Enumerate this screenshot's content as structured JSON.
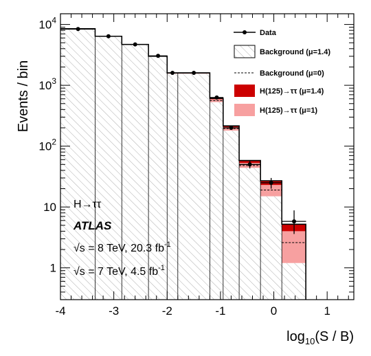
{
  "chart_data": {
    "type": "histogram",
    "ylog": true,
    "xlabel_main": "log",
    "xlabel_sub": "10",
    "xlabel_rest": "(S / B)",
    "ylabel": "Events / bin",
    "xlim": [
      -4,
      1.5
    ],
    "ylim": [
      0.3,
      15000
    ],
    "x_ticks": [
      "-4",
      "-3",
      "-2",
      "-1",
      "0",
      "1"
    ],
    "y_ticks": [
      {
        "value": 10000,
        "base": "10",
        "exp": "4"
      },
      {
        "value": 1000,
        "base": "10",
        "exp": "3"
      },
      {
        "value": 100,
        "base": "10",
        "exp": "2"
      },
      {
        "value": 10,
        "base": "10",
        "exp": ""
      },
      {
        "value": 1,
        "base": "1",
        "exp": ""
      }
    ],
    "bin_edges": [
      -4.0,
      -3.35,
      -2.85,
      -2.35,
      -2.0,
      -1.8,
      -1.2,
      -0.95,
      -0.65,
      -0.25,
      0.15,
      0.6
    ],
    "background_mu14": [
      8500,
      6400,
      4700,
      3000,
      1550,
      1550,
      530,
      180,
      44,
      15,
      1.2
    ],
    "background_mu0": [
      8500,
      6400,
      4700,
      3000,
      1600,
      1600,
      560,
      195,
      48,
      19,
      2.6
    ],
    "signal_mu14_total": [
      8500,
      6400,
      4700,
      3000,
      1600,
      1600,
      610,
      215,
      58,
      27,
      5.2
    ],
    "signal_mu1_total": [
      8500,
      6400,
      4700,
      3000,
      1600,
      1600,
      590,
      205,
      53,
      23,
      4.0
    ],
    "data": {
      "x": [
        -3.67,
        -3.1,
        -2.6,
        -2.17,
        -1.9,
        -1.5,
        -1.07,
        -0.8,
        -0.45,
        -0.05,
        0.38
      ],
      "y": [
        8400,
        6400,
        4700,
        3050,
        1600,
        1600,
        630,
        200,
        50,
        25,
        5.8
      ],
      "err_low": [
        90,
        80,
        70,
        55,
        40,
        40,
        25,
        14,
        7,
        5,
        2.2
      ],
      "err_high": [
        90,
        80,
        70,
        55,
        40,
        40,
        25,
        14,
        7,
        5,
        3.0
      ]
    },
    "legend": [
      {
        "key": "data",
        "label": "Data"
      },
      {
        "key": "bkg14",
        "label": "Background (μ=1.4)"
      },
      {
        "key": "bkg0",
        "label": "Background (μ=0)"
      },
      {
        "key": "sig14",
        "label": "H(125)→ττ (μ=1.4)"
      },
      {
        "key": "sig1",
        "label": "H(125)→ττ (μ=1)"
      }
    ],
    "legend_position": "top-right",
    "colors": {
      "signal_mu14": "#cc0000",
      "signal_mu1": "#f7a0a0",
      "background_fill": "#ececec",
      "hatch": "#9a9a9a"
    }
  },
  "annotations": {
    "process": "H→ττ",
    "experiment": "ATLAS",
    "run8_prefix": "√s = 8 TeV, 20.3 fb",
    "run8_exp": "-1",
    "run7_prefix": "√s = 7 TeV, 4.5 fb",
    "run7_exp": "-1"
  }
}
